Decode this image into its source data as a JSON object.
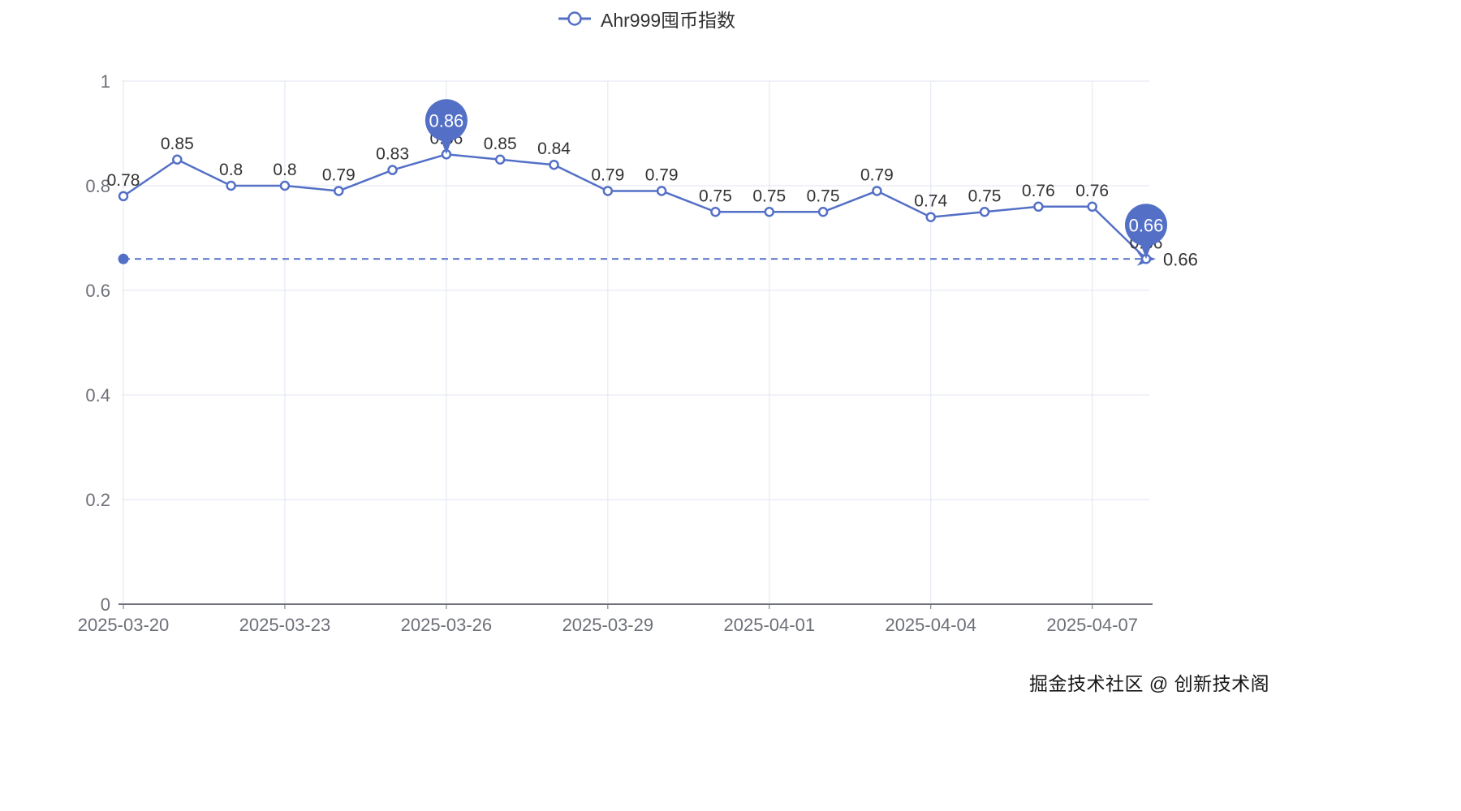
{
  "legend": {
    "label": "Ahr999囤币指数"
  },
  "watermark": "掘金技术社区 @ 创新技术阁",
  "chart_data": {
    "type": "line",
    "title": "Ahr999囤币指数",
    "xlabel": "",
    "ylabel": "",
    "x": [
      "2025-03-20",
      "2025-03-21",
      "2025-03-22",
      "2025-03-23",
      "2025-03-24",
      "2025-03-25",
      "2025-03-26",
      "2025-03-27",
      "2025-03-28",
      "2025-03-29",
      "2025-03-30",
      "2025-03-31",
      "2025-04-01",
      "2025-04-02",
      "2025-04-03",
      "2025-04-04",
      "2025-04-05",
      "2025-04-06",
      "2025-04-07",
      "2025-04-08"
    ],
    "series": [
      {
        "name": "Ahr999囤币指数",
        "values": [
          0.78,
          0.85,
          0.8,
          0.8,
          0.79,
          0.83,
          0.86,
          0.85,
          0.84,
          0.79,
          0.79,
          0.75,
          0.75,
          0.75,
          0.79,
          0.74,
          0.75,
          0.76,
          0.76,
          0.66
        ]
      }
    ],
    "x_tick_labels": [
      "2025-03-20",
      "2025-03-23",
      "2025-03-26",
      "2025-03-29",
      "2025-04-01",
      "2025-04-04",
      "2025-04-07"
    ],
    "y_ticks": [
      0,
      0.2,
      0.4,
      0.6,
      0.8,
      1
    ],
    "ylim": [
      0,
      1
    ],
    "grid": true,
    "legend_position": "top-center",
    "mark_line": {
      "value": 0.66,
      "label": "0.66"
    },
    "mark_points": [
      {
        "type": "max",
        "index": 6,
        "value": 0.86
      },
      {
        "type": "min",
        "index": 19,
        "value": 0.66
      }
    ],
    "colors": {
      "series": "#5470c6",
      "axis_label": "#6E7079",
      "axis_line": "#6E7079",
      "grid_line": "#E0E6F1",
      "data_label": "#333333",
      "pin_text": "#ffffff"
    }
  }
}
